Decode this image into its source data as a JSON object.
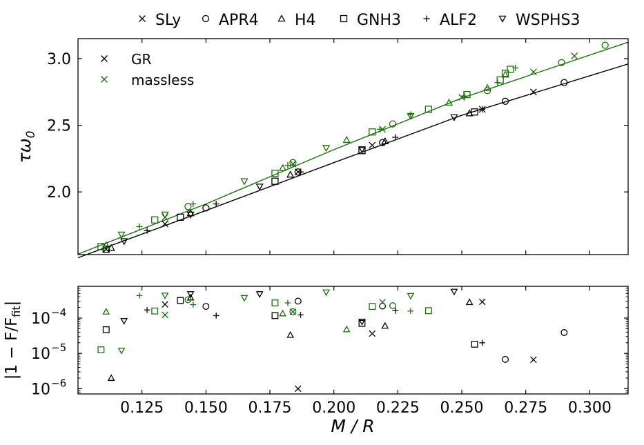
{
  "legend_top": {
    "placement": "top-center",
    "entries": [
      {
        "label": "SLy",
        "marker": "x"
      },
      {
        "label": "APR4",
        "marker": "o"
      },
      {
        "label": "H4",
        "marker": "^"
      },
      {
        "label": "GNH3",
        "marker": "s"
      },
      {
        "label": "ALF2",
        "marker": "+"
      },
      {
        "label": "WSPHS3",
        "marker": "v"
      }
    ]
  },
  "legend_inner": {
    "placement": "top-left",
    "entries": [
      {
        "label": "GR",
        "color": "#000000"
      },
      {
        "label": "massless",
        "color": "#1a6e0a"
      }
    ]
  },
  "colors": {
    "gr": "#000000",
    "massless": "#1a6e0a"
  },
  "chart_data": [
    {
      "type": "scatter",
      "title": "",
      "xlabel": "",
      "ylabel": "τω0",
      "xlim": [
        0.1,
        0.315
      ],
      "ylim": [
        1.53,
        3.15
      ],
      "xticks": [
        0.125,
        0.15,
        0.175,
        0.2,
        0.225,
        0.25,
        0.275,
        0.3
      ],
      "yticks": [
        2.0,
        2.5,
        3.0
      ],
      "ytick_labels": [
        "2.0",
        "2.5",
        "3.0"
      ],
      "fit_lines": [
        {
          "name": "GR fit",
          "color": "#000000",
          "x": [
            0.1,
            0.15,
            0.2,
            0.25,
            0.315
          ],
          "y": [
            1.506,
            1.86,
            2.22,
            2.575,
            2.96
          ]
        },
        {
          "name": "massless fit",
          "color": "#1a6e0a",
          "x": [
            0.1,
            0.15,
            0.2,
            0.25,
            0.315
          ],
          "y": [
            1.533,
            1.91,
            2.317,
            2.704,
            3.123
          ]
        }
      ],
      "series": [
        {
          "name": "SLy",
          "group": "GR",
          "marker": "x",
          "x": [
            0.111,
            0.134,
            0.186,
            0.215,
            0.258,
            0.278
          ],
          "y": [
            1.57,
            1.76,
            2.15,
            2.35,
            2.62,
            2.75
          ]
        },
        {
          "name": "APR4",
          "group": "GR",
          "marker": "o",
          "x": [
            0.15,
            0.186,
            0.219,
            0.267,
            0.29
          ],
          "y": [
            1.88,
            2.15,
            2.37,
            2.68,
            2.82
          ]
        },
        {
          "name": "H4",
          "group": "GR",
          "marker": "^",
          "x": [
            0.113,
            0.144,
            0.183,
            0.22,
            0.253
          ],
          "y": [
            1.58,
            1.84,
            2.13,
            2.38,
            2.59
          ]
        },
        {
          "name": "GNH3",
          "group": "GR",
          "marker": "s",
          "x": [
            0.111,
            0.14,
            0.177,
            0.211,
            0.255
          ],
          "y": [
            1.57,
            1.81,
            2.08,
            2.31,
            2.6
          ]
        },
        {
          "name": "ALF2",
          "group": "GR",
          "marker": "+",
          "x": [
            0.127,
            0.154,
            0.187,
            0.224,
            0.258
          ],
          "y": [
            1.71,
            1.91,
            2.15,
            2.41,
            2.62
          ]
        },
        {
          "name": "WSPHS3",
          "group": "GR",
          "marker": "v",
          "x": [
            0.118,
            0.144,
            0.171,
            0.211,
            0.247
          ],
          "y": [
            1.63,
            1.83,
            2.04,
            2.32,
            2.56
          ]
        },
        {
          "name": "SLy",
          "group": "massless",
          "marker": "x",
          "x": [
            0.134,
            0.184,
            0.219,
            0.25,
            0.278,
            0.294
          ],
          "y": [
            1.81,
            2.21,
            2.47,
            2.71,
            2.9,
            3.02
          ]
        },
        {
          "name": "APR4",
          "group": "massless",
          "marker": "o",
          "x": [
            0.143,
            0.184,
            0.223,
            0.26,
            0.289,
            0.306
          ],
          "y": [
            1.89,
            2.22,
            2.51,
            2.76,
            2.97,
            3.1
          ]
        },
        {
          "name": "H4",
          "group": "massless",
          "marker": "^",
          "x": [
            0.111,
            0.18,
            0.205,
            0.245,
            0.26,
            0.267
          ],
          "y": [
            1.6,
            2.18,
            2.39,
            2.67,
            2.78,
            2.88
          ]
        },
        {
          "name": "GNH3",
          "group": "massless",
          "marker": "s",
          "x": [
            0.109,
            0.13,
            0.177,
            0.215,
            0.237,
            0.252,
            0.265,
            0.267,
            0.269
          ],
          "y": [
            1.59,
            1.79,
            2.14,
            2.45,
            2.62,
            2.73,
            2.84,
            2.89,
            2.92
          ]
        },
        {
          "name": "ALF2",
          "group": "massless",
          "marker": "+",
          "x": [
            0.124,
            0.145,
            0.182,
            0.218,
            0.23,
            0.251,
            0.264,
            0.271
          ],
          "y": [
            1.74,
            1.91,
            2.2,
            2.47,
            2.58,
            2.72,
            2.82,
            2.93
          ]
        },
        {
          "name": "WSPHS3",
          "group": "massless",
          "marker": "v",
          "x": [
            0.117,
            0.134,
            0.165,
            0.197,
            0.23
          ],
          "y": [
            1.68,
            1.83,
            2.08,
            2.33,
            2.57
          ]
        }
      ]
    },
    {
      "type": "scatter",
      "title": "",
      "xlabel": "M / R",
      "ylabel": "|1 − F/F_fit|",
      "yscale": "log",
      "xlim": [
        0.1,
        0.315
      ],
      "ylim_log10": [
        -6.15,
        -3.1
      ],
      "xticks": [
        0.125,
        0.15,
        0.175,
        0.2,
        0.225,
        0.25,
        0.275,
        0.3
      ],
      "xtick_labels": [
        "0.125",
        "0.150",
        "0.175",
        "0.200",
        "0.225",
        "0.250",
        "0.275",
        "0.300"
      ],
      "yticks_log10": [
        -6,
        -5,
        -4
      ],
      "series": [
        {
          "name": "SLy",
          "group": "GR",
          "marker": "x",
          "x": [
            0.134,
            0.186,
            0.215,
            0.258,
            0.278
          ],
          "log10y": [
            -3.61,
            -6.0,
            -4.44,
            -3.54,
            -5.18
          ]
        },
        {
          "name": "APR4",
          "group": "GR",
          "marker": "o",
          "x": [
            0.15,
            0.186,
            0.219,
            0.267,
            0.29
          ],
          "log10y": [
            -3.67,
            -3.52,
            -3.66,
            -5.17,
            -4.41
          ]
        },
        {
          "name": "H4",
          "group": "GR",
          "marker": "^",
          "x": [
            0.113,
            0.144,
            0.183,
            0.22,
            0.253
          ],
          "log10y": [
            -5.7,
            -3.42,
            -4.48,
            -4.22,
            -3.55
          ]
        },
        {
          "name": "GNH3",
          "group": "GR",
          "marker": "s",
          "x": [
            0.111,
            0.14,
            0.177,
            0.211,
            0.255
          ],
          "log10y": [
            -4.33,
            -3.5,
            -3.93,
            -4.15,
            -4.74
          ]
        },
        {
          "name": "ALF2",
          "group": "GR",
          "marker": "+",
          "x": [
            0.127,
            0.154,
            0.187,
            0.224,
            0.258
          ],
          "log10y": [
            -3.77,
            -3.93,
            -3.91,
            -3.79,
            -4.7
          ]
        },
        {
          "name": "WSPHS3",
          "group": "GR",
          "marker": "v",
          "x": [
            0.118,
            0.144,
            0.171,
            0.211,
            0.247
          ],
          "log10y": [
            -4.08,
            -3.32,
            -3.32,
            -4.1,
            -3.25
          ]
        },
        {
          "name": "SLy",
          "group": "massless",
          "marker": "x",
          "x": [
            0.134,
            0.184,
            0.219
          ],
          "log10y": [
            -3.91,
            -3.82,
            -3.55
          ]
        },
        {
          "name": "APR4",
          "group": "massless",
          "marker": "o",
          "x": [
            0.143,
            0.184,
            0.223
          ],
          "log10y": [
            -3.48,
            -3.82,
            -3.65
          ]
        },
        {
          "name": "H4",
          "group": "massless",
          "marker": "^",
          "x": [
            0.111,
            0.18,
            0.205
          ],
          "log10y": [
            -3.82,
            -3.87,
            -4.32
          ]
        },
        {
          "name": "GNH3",
          "group": "massless",
          "marker": "s",
          "x": [
            0.109,
            0.13,
            0.177,
            0.215,
            0.237
          ],
          "log10y": [
            -4.9,
            -3.8,
            -3.57,
            -3.67,
            -3.79
          ]
        },
        {
          "name": "ALF2",
          "group": "massless",
          "marker": "+",
          "x": [
            0.124,
            0.145,
            0.182,
            0.23
          ],
          "log10y": [
            -3.36,
            -3.62,
            -3.57,
            -3.8
          ]
        },
        {
          "name": "WSPHS3",
          "group": "massless",
          "marker": "v",
          "x": [
            0.117,
            0.134,
            0.165,
            0.197,
            0.23
          ],
          "log10y": [
            -4.92,
            -3.36,
            -3.43,
            -3.27,
            -3.37
          ]
        }
      ]
    }
  ]
}
